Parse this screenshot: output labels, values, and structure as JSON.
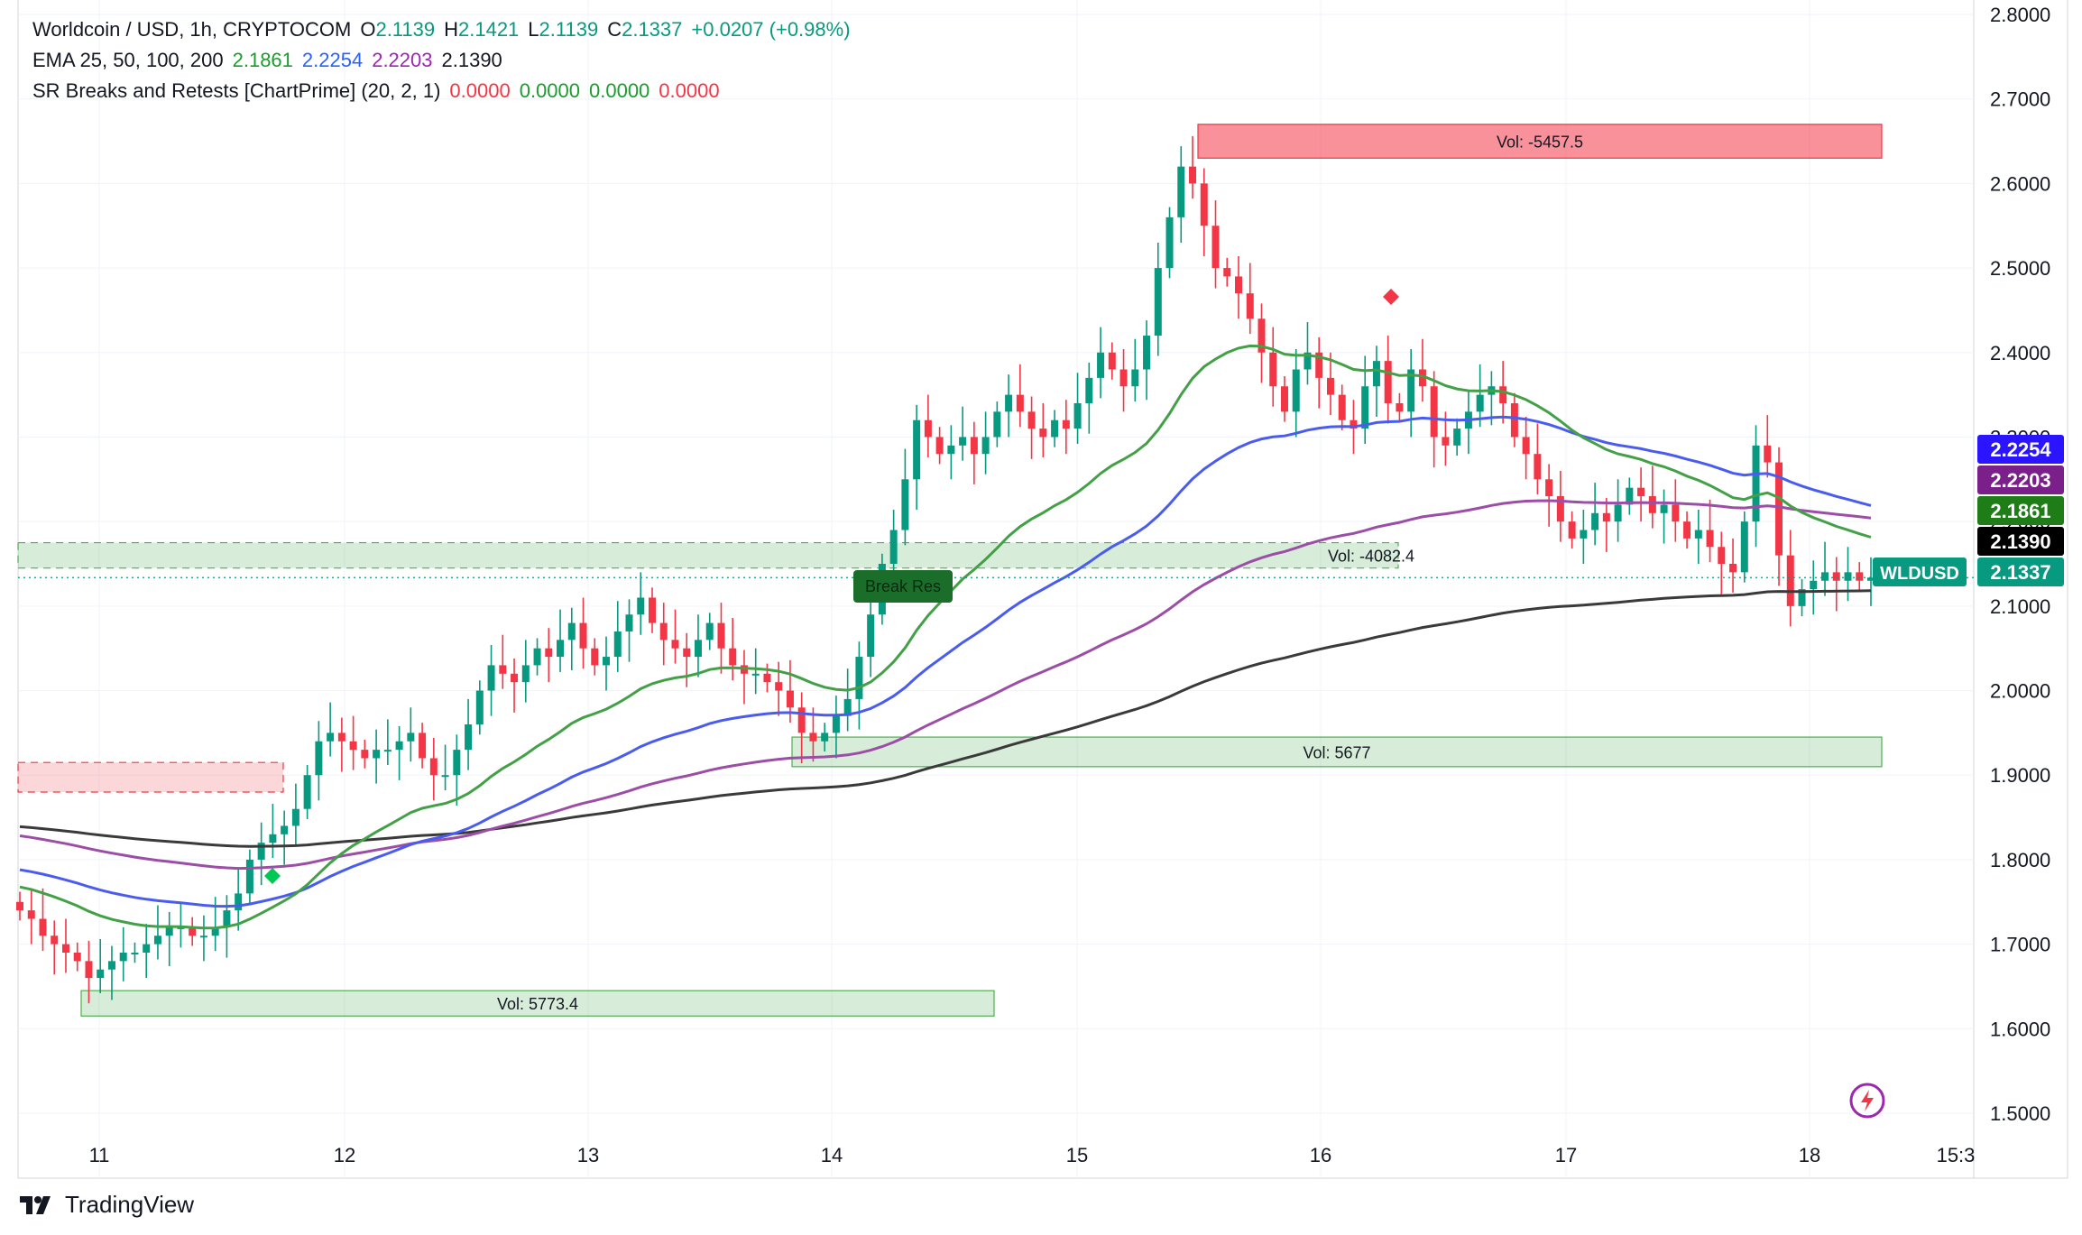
{
  "header": {
    "symbol": "Worldcoin / USD, 1h, CRYPTOCOM",
    "o_label": "O",
    "o": "2.1139",
    "h_label": "H",
    "h": "2.1421",
    "l_label": "L",
    "l": "2.1139",
    "c_label": "C",
    "c": "2.1337",
    "change": "+0.0207 (+0.98%)"
  },
  "ema": {
    "label": "EMA 25, 50, 100, 200",
    "v25": "2.1861",
    "v50": "2.2254",
    "v100": "2.2203",
    "v200": "2.1390"
  },
  "sr": {
    "label": "SR Breaks and Retests [ChartPrime] (20, 2, 1)",
    "v1": "0.0000",
    "v2": "0.0000",
    "v3": "0.0000",
    "v4": "0.0000"
  },
  "brand": "TradingView",
  "colors": {
    "up": "#089981",
    "down": "#f23645",
    "ema25": "#43a047",
    "ema50": "#4a5cf0",
    "ema100": "#9c4ea6",
    "ema200": "#3a3a3a"
  },
  "chart_data": {
    "type": "candlestick",
    "x_ticks": [
      "11",
      "12",
      "13",
      "14",
      "15",
      "16",
      "17",
      "18",
      "15:3"
    ],
    "y_ticks": [
      "1.5000",
      "1.6000",
      "1.7000",
      "1.8000",
      "1.9000",
      "2.0000",
      "2.1000",
      "2.2000",
      "2.3000",
      "2.4000",
      "2.5000",
      "2.6000",
      "2.7000",
      "2.8000"
    ],
    "ylim": [
      1.5,
      2.8
    ],
    "candle_closes": [
      1.74,
      1.73,
      1.71,
      1.7,
      1.69,
      1.68,
      1.66,
      1.67,
      1.68,
      1.69,
      1.69,
      1.7,
      1.71,
      1.72,
      1.72,
      1.71,
      1.71,
      1.72,
      1.74,
      1.76,
      1.8,
      1.82,
      1.83,
      1.84,
      1.86,
      1.9,
      1.94,
      1.95,
      1.94,
      1.93,
      1.92,
      1.93,
      1.93,
      1.94,
      1.95,
      1.92,
      1.9,
      1.9,
      1.93,
      1.96,
      2.0,
      2.03,
      2.02,
      2.01,
      2.03,
      2.05,
      2.04,
      2.06,
      2.08,
      2.05,
      2.03,
      2.04,
      2.07,
      2.09,
      2.11,
      2.08,
      2.06,
      2.05,
      2.04,
      2.06,
      2.08,
      2.05,
      2.03,
      2.02,
      2.02,
      2.01,
      2.0,
      1.98,
      1.95,
      1.94,
      1.95,
      1.97,
      1.99,
      2.04,
      2.09,
      2.15,
      2.19,
      2.25,
      2.32,
      2.3,
      2.28,
      2.29,
      2.3,
      2.28,
      2.3,
      2.33,
      2.35,
      2.33,
      2.31,
      2.3,
      2.32,
      2.31,
      2.34,
      2.37,
      2.4,
      2.38,
      2.36,
      2.38,
      2.42,
      2.5,
      2.56,
      2.62,
      2.6,
      2.55,
      2.5,
      2.49,
      2.47,
      2.44,
      2.4,
      2.36,
      2.33,
      2.38,
      2.4,
      2.37,
      2.35,
      2.32,
      2.31,
      2.36,
      2.39,
      2.34,
      2.33,
      2.38,
      2.36,
      2.3,
      2.29,
      2.31,
      2.33,
      2.35,
      2.36,
      2.34,
      2.3,
      2.28,
      2.25,
      2.23,
      2.2,
      2.18,
      2.19,
      2.21,
      2.2,
      2.22,
      2.24,
      2.23,
      2.21,
      2.22,
      2.2,
      2.18,
      2.19,
      2.17,
      2.15,
      2.14,
      2.2,
      2.29,
      2.27,
      2.16,
      2.1,
      2.12,
      2.13,
      2.14,
      2.13,
      2.14,
      2.13,
      2.1337
    ],
    "ema25_last": 2.1861,
    "ema50_last": 2.2254,
    "ema100_last": 2.2203,
    "ema200_last": 2.139,
    "current_price": 2.1337,
    "symbol_tag": "WLDUSD",
    "zones": [
      {
        "kind": "resistance",
        "label": "Vol: -5457.5",
        "low": 2.63,
        "high": 2.67
      },
      {
        "kind": "support-retest",
        "label": "Vol: -4082.4",
        "low": 2.145,
        "high": 2.175
      },
      {
        "kind": "support",
        "label": "Vol: 5677",
        "low": 1.91,
        "high": 1.945
      },
      {
        "kind": "support",
        "label": "Vol: 5773.4",
        "low": 1.615,
        "high": 1.645
      },
      {
        "kind": "resistance-old",
        "label": "",
        "low": 1.88,
        "high": 1.915
      }
    ],
    "annotations": [
      {
        "label": "Break Res"
      }
    ],
    "grid": true
  }
}
